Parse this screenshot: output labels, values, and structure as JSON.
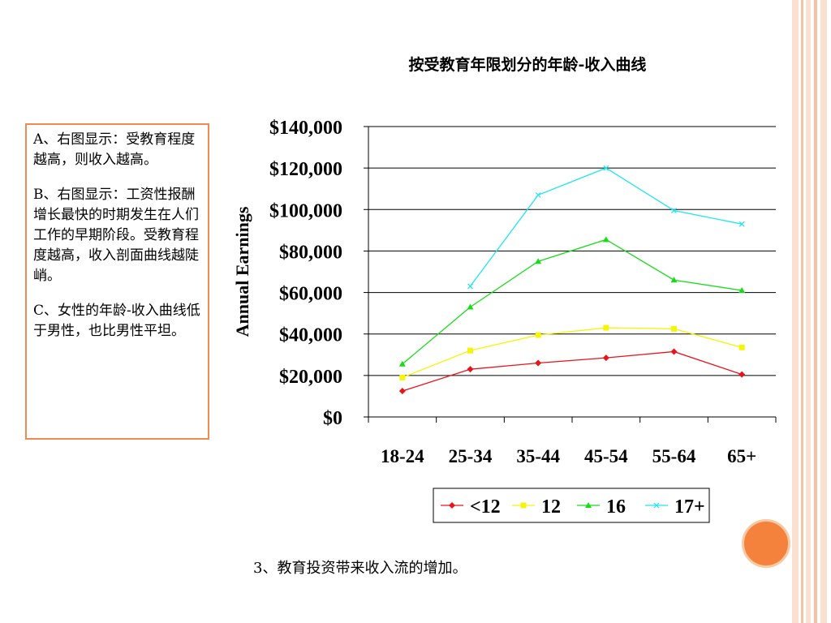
{
  "notes": [
    "A、右图显示：受教育程度越高，则收入越高。",
    "B、右图显示：工资性报酬增长最快的时期发生在人们工作的早期阶段。受教育程度越高，收入剖面曲线越陡峭。",
    "C、女性的年龄-收入曲线低于男性，也比男性平坦。"
  ],
  "caption": "3、教育投资带来收入流的增加。",
  "colors": {
    "border_accent": "#f08a50",
    "deco_light": "#fbe3d4",
    "deco_mid": "#f7c7a8",
    "circle": "#f5823c"
  },
  "chart_data": {
    "type": "line",
    "title": "按受教育年限划分的年龄-收入曲线",
    "ylabel": "Annual Earnings",
    "xlabel": "",
    "categories": [
      "18-24",
      "25-34",
      "35-44",
      "45-54",
      "55-64",
      "65+"
    ],
    "ylim": [
      0,
      140000
    ],
    "yticks": [
      "$0",
      "$20,000",
      "$40,000",
      "$60,000",
      "$80,000",
      "$100,000",
      "$120,000",
      "$140,000"
    ],
    "grid": true,
    "legend_position": "bottom",
    "series": [
      {
        "name": "<12",
        "color": "#e8141c",
        "marker": "diamond",
        "values": [
          12500,
          23000,
          26000,
          28500,
          31500,
          20500
        ]
      },
      {
        "name": "12",
        "color": "#f5f50a",
        "marker": "square",
        "values": [
          19000,
          32000,
          39500,
          43000,
          42500,
          33500
        ]
      },
      {
        "name": "16",
        "color": "#19dc19",
        "marker": "triangle",
        "values": [
          25500,
          53000,
          75000,
          85500,
          66000,
          61000
        ]
      },
      {
        "name": "17+",
        "color": "#1ee6f0",
        "marker": "x",
        "values": [
          null,
          63000,
          107000,
          120000,
          99500,
          93000
        ]
      }
    ]
  }
}
